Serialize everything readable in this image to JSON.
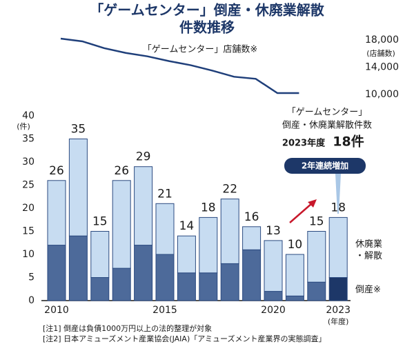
{
  "chart_data": [
    {
      "type": "bar",
      "stacked": true,
      "title": [
        "「ゲームセンター」倒産・休廃業解散",
        "件数推移"
      ],
      "x": [
        2010,
        2011,
        2012,
        2013,
        2014,
        2015,
        2016,
        2017,
        2018,
        2019,
        2020,
        2021,
        2022,
        2023
      ],
      "xticks": [
        2010,
        2015,
        2020,
        2023
      ],
      "x_unit": "(年度)",
      "ylim": [
        0,
        40
      ],
      "yticks": [
        0,
        5,
        10,
        15,
        20,
        25,
        30,
        35,
        40
      ],
      "y_unit": "(件)",
      "series": [
        {
          "name": "倒産※",
          "color": "#4d6a9a",
          "colors": [
            "#4d6a9a",
            "#4d6a9a",
            "#4d6a9a",
            "#4d6a9a",
            "#4d6a9a",
            "#4d6a9a",
            "#4d6a9a",
            "#4d6a9a",
            "#4d6a9a",
            "#4d6a9a",
            "#4d6a9a",
            "#4d6a9a",
            "#4d6a9a",
            "#1d3768"
          ],
          "values": [
            12,
            14,
            5,
            7,
            12,
            10,
            6,
            6,
            8,
            11,
            2,
            1,
            4,
            5
          ]
        },
        {
          "name": "休廃業・解散",
          "color": "#c7dcf1",
          "values": [
            14,
            21,
            10,
            19,
            17,
            11,
            8,
            12,
            14,
            5,
            11,
            9,
            11,
            13
          ]
        }
      ],
      "total_labels": [
        26,
        35,
        15,
        26,
        29,
        21,
        14,
        18,
        22,
        16,
        13,
        10,
        15,
        18
      ],
      "callout": {
        "lines": [
          "「ゲームセンター」",
          "倒産・休廃業解散件数"
        ],
        "year_label": "2023年度",
        "value_label": "18件",
        "badge": "2年連続増加"
      }
    },
    {
      "type": "line",
      "name": "「ゲームセンター」店舗数※",
      "color": "#1f3f7a",
      "x": [
        2010,
        2011,
        2012,
        2013,
        2014,
        2015,
        2016,
        2017,
        2018,
        2019,
        2020,
        2021
      ],
      "values": [
        18200,
        17800,
        16800,
        16100,
        15600,
        14900,
        14300,
        13500,
        12600,
        12300,
        10200,
        10200
      ],
      "ylim": [
        10000,
        18000
      ],
      "yticks": [
        {
          "value": 10000,
          "label": "10,000"
        },
        {
          "value": 14000,
          "label": "14,000"
        },
        {
          "value": 18000,
          "label": "18,000"
        }
      ],
      "y_unit": "(店舗数)"
    }
  ],
  "notes": [
    "[注1]  倒産は負債1000万円以上の法的整理が対象",
    "[注2]  日本アミューズメント産業協会(JAIA)「アミューズメント産業界の実態調査」"
  ]
}
